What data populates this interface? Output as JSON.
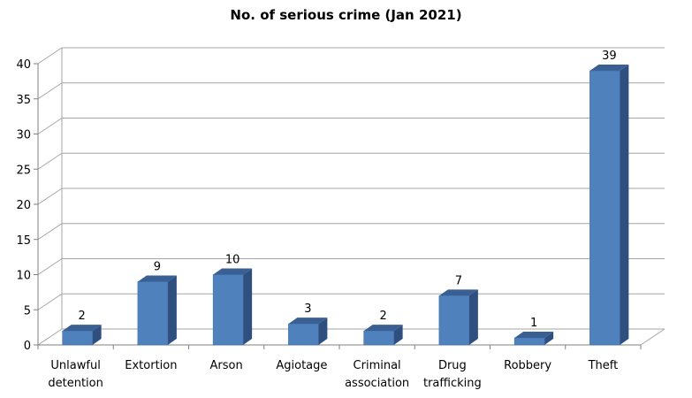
{
  "chart_data": {
    "type": "bar",
    "title": "No. of serious crime (Jan 2021)",
    "categories": [
      [
        "Unlawful",
        "detention"
      ],
      [
        "Extortion"
      ],
      [
        "Arson"
      ],
      [
        "Agiotage"
      ],
      [
        "Criminal",
        "association"
      ],
      [
        "Drug",
        "trafficking"
      ],
      [
        "Robbery"
      ],
      [
        "Theft"
      ]
    ],
    "values": [
      2,
      9,
      10,
      3,
      2,
      7,
      1,
      39
    ],
    "ylim": [
      0,
      40
    ],
    "yticks": [
      0,
      5,
      10,
      15,
      20,
      25,
      30,
      35,
      40
    ],
    "grid": true,
    "legend": "none",
    "colors": {
      "bar_front": "#4f81bd",
      "bar_side": "#2f4f7f",
      "bar_top": "#3a5f93",
      "grid": "#a6a6a6",
      "axis": "#808080"
    }
  }
}
